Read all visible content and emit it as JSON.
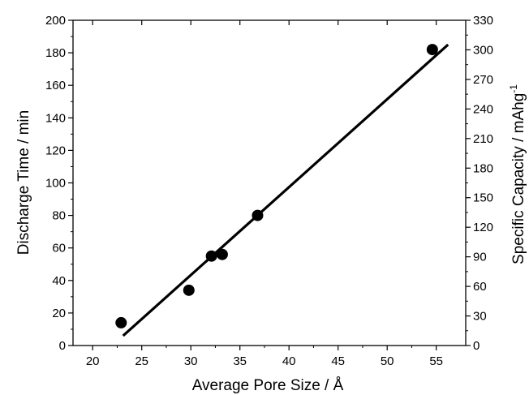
{
  "chart_data": {
    "type": "scatter",
    "title": "",
    "xlabel": "Average Pore Size / Å",
    "ylabel": "Discharge Time / min",
    "y2label": "Specific Capacity / mAhg",
    "y2label_sup": "-1",
    "xlim": [
      18,
      58
    ],
    "ylim": [
      0,
      200
    ],
    "y2lim": [
      0,
      330
    ],
    "x_ticks": [
      20,
      25,
      30,
      35,
      40,
      45,
      50,
      55
    ],
    "x_tick_labels": [
      "20",
      "25",
      "30",
      "35",
      "40",
      "45",
      "50",
      "55"
    ],
    "y_ticks": [
      0,
      20,
      40,
      60,
      80,
      100,
      120,
      140,
      160,
      180,
      200
    ],
    "y_tick_labels": [
      "0",
      "20",
      "40",
      "60",
      "80",
      "100",
      "120",
      "140",
      "160",
      "180",
      "200"
    ],
    "y2_ticks": [
      0,
      30,
      60,
      90,
      120,
      150,
      180,
      210,
      240,
      270,
      300,
      330
    ],
    "y2_tick_labels": [
      "0",
      "30",
      "60",
      "90",
      "120",
      "150",
      "180",
      "210",
      "240",
      "270",
      "300",
      "330"
    ],
    "grid": false,
    "series": [
      {
        "points": [
          {
            "x": 22.9,
            "y": 14
          },
          {
            "x": 29.8,
            "y": 34
          },
          {
            "x": 32.1,
            "y": 55
          },
          {
            "x": 33.2,
            "y": 56
          },
          {
            "x": 36.8,
            "y": 80
          },
          {
            "x": 54.6,
            "y": 182
          }
        ],
        "color": "#000000"
      }
    ],
    "fit_line": {
      "x": [
        23.1,
        56.2
      ],
      "y": [
        6,
        185
      ],
      "color": "#000000"
    }
  }
}
